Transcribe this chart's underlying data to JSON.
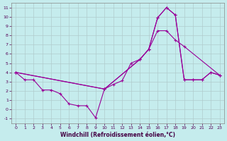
{
  "xlabel": "Windchill (Refroidissement éolien,°C)",
  "background_color": "#c5eced",
  "grid_color": "#b0cccc",
  "line_color": "#990099",
  "xlim": [
    -0.5,
    23.5
  ],
  "ylim": [
    -1.5,
    11.5
  ],
  "xticks": [
    0,
    1,
    2,
    3,
    4,
    5,
    6,
    7,
    8,
    9,
    10,
    11,
    12,
    13,
    14,
    15,
    16,
    17,
    18,
    19,
    20,
    21,
    22,
    23
  ],
  "yticks": [
    -1,
    0,
    1,
    2,
    3,
    4,
    5,
    6,
    7,
    8,
    9,
    10,
    11
  ],
  "line1_x": [
    0,
    1,
    2,
    3,
    4,
    5,
    6,
    7,
    8,
    9,
    10,
    11,
    12,
    13,
    14,
    15,
    16,
    17,
    18,
    19,
    20,
    21,
    22,
    23
  ],
  "line1_y": [
    4.0,
    3.2,
    3.2,
    2.1,
    2.1,
    1.7,
    0.6,
    0.4,
    0.4,
    -0.9,
    2.2,
    2.7,
    3.1,
    5.0,
    5.4,
    6.5,
    9.9,
    11.0,
    10.2,
    3.2,
    3.2,
    3.2,
    4.0,
    3.7
  ],
  "line2_x": [
    0,
    10,
    14,
    15,
    16,
    17,
    18,
    19,
    20,
    21,
    22,
    23
  ],
  "line2_y": [
    4.0,
    2.2,
    5.4,
    6.5,
    9.9,
    11.0,
    10.2,
    3.2,
    3.2,
    3.2,
    4.0,
    3.7
  ],
  "line3_x": [
    0,
    10,
    14,
    15,
    16,
    17,
    18,
    19,
    23
  ],
  "line3_y": [
    4.0,
    2.2,
    5.4,
    6.5,
    8.5,
    8.5,
    7.5,
    6.8,
    3.7
  ]
}
